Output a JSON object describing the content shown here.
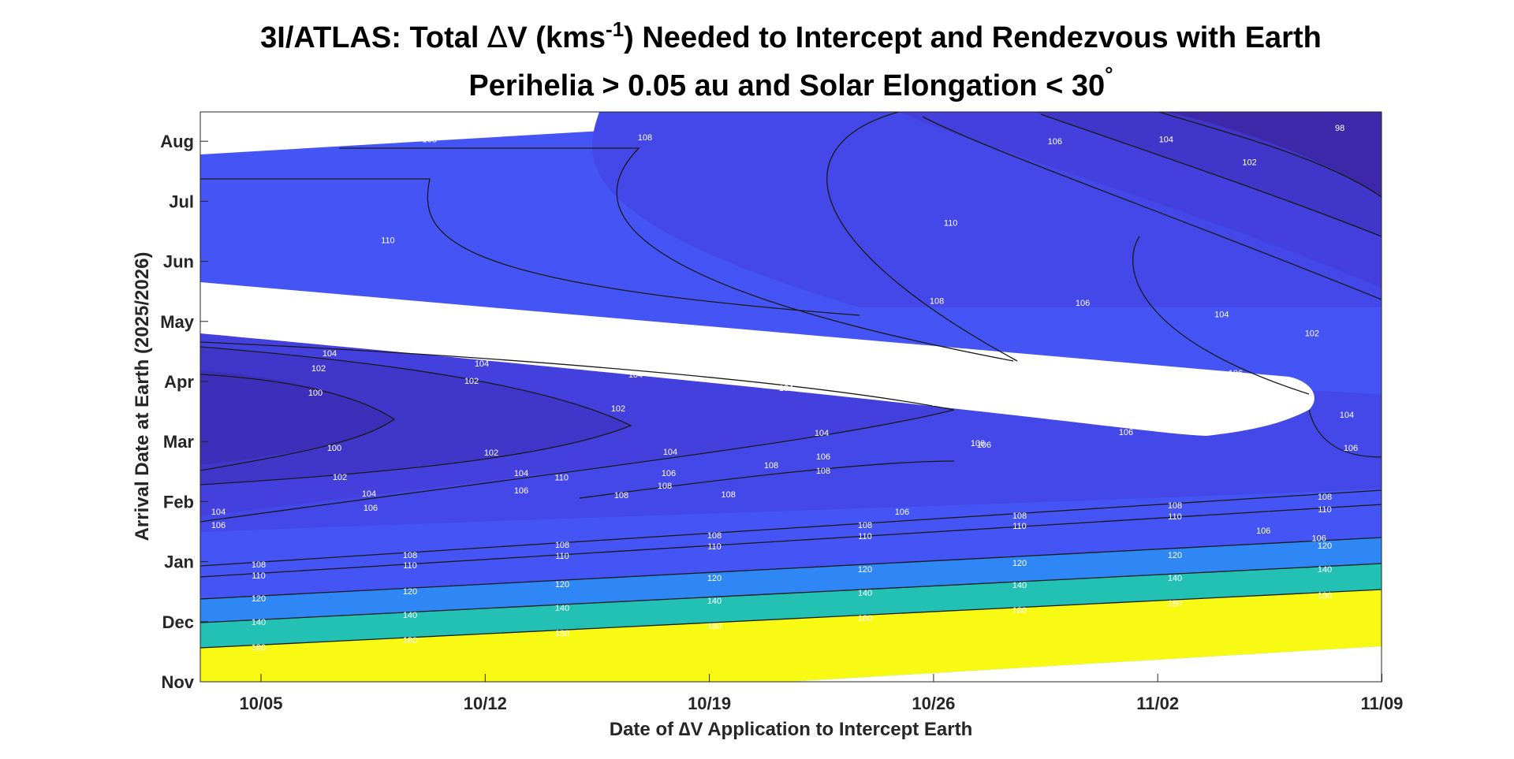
{
  "chart_data": {
    "type": "heatmap",
    "title_line1_prefix": "3I/ATLAS: Total ",
    "title_line1_delta": "∆",
    "title_line1_v": "V (kms",
    "title_line1_sup": "-1",
    "title_line1_suffix": ") Needed to Intercept and Rendezvous with Earth",
    "title_line2": "Perihelia > 0.05 au and Solar Elongation < 30",
    "title_line2_sup": "°",
    "xlabel": "Date of ∆V Application to Intercept Earth",
    "ylabel": "Arrival Date at Earth (2025/2026)",
    "x_ticks": [
      "10/05",
      "10/12",
      "10/19",
      "10/26",
      "11/02",
      "11/09"
    ],
    "y_ticks": [
      "Nov",
      "Dec",
      "Jan",
      "Feb",
      "Mar",
      "Apr",
      "May",
      "Jun",
      "Jul",
      "Aug"
    ],
    "contour_levels": [
      98,
      100,
      102,
      104,
      106,
      108,
      110,
      120,
      140,
      180
    ],
    "color_bands": [
      {
        "level": 98,
        "color": "#3c28a8"
      },
      {
        "level": 100,
        "color": "#3d2fb9"
      },
      {
        "level": 102,
        "color": "#4036c9"
      },
      {
        "level": 104,
        "color": "#4440de"
      },
      {
        "level": 106,
        "color": "#4548e8"
      },
      {
        "level": 108,
        "color": "#4454f5"
      },
      {
        "level": 110,
        "color": "#4150f8"
      },
      {
        "level": 120,
        "color": "#2e87f5"
      },
      {
        "level": 140,
        "color": "#22c1b4"
      },
      {
        "level": 180,
        "color": "#f9fa14"
      }
    ],
    "contour_labels": [
      {
        "text": "108",
        "x": 3.3,
        "y": 2.84
      },
      {
        "text": "108",
        "x": 6.4,
        "y": 2.85
      },
      {
        "text": "106",
        "x": 12.3,
        "y": 2.83
      },
      {
        "text": "104",
        "x": 13.9,
        "y": 2.84
      },
      {
        "text": "102",
        "x": 15.1,
        "y": 2.72
      },
      {
        "text": "98",
        "x": 16.4,
        "y": 2.9
      },
      {
        "text": "110",
        "x": 2.7,
        "y": 2.31
      },
      {
        "text": "110",
        "x": 10.8,
        "y": 2.4
      },
      {
        "text": "108",
        "x": 10.6,
        "y": 1.99
      },
      {
        "text": "106",
        "x": 12.7,
        "y": 1.98
      },
      {
        "text": "104",
        "x": 14.7,
        "y": 1.92
      },
      {
        "text": "102",
        "x": 16.0,
        "y": 1.82
      },
      {
        "text": "106",
        "x": 14.9,
        "y": 1.61
      },
      {
        "text": "104",
        "x": 16.5,
        "y": 1.39
      },
      {
        "text": "110",
        "x": 5.2,
        "y": 1.06
      },
      {
        "text": "108",
        "x": 7.6,
        "y": 0.97
      },
      {
        "text": "106",
        "x": 10.1,
        "y": 0.88
      },
      {
        "text": "106",
        "x": 15.3,
        "y": 0.78
      },
      {
        "text": "106",
        "x": 16.1,
        "y": 0.74
      }
    ]
  }
}
